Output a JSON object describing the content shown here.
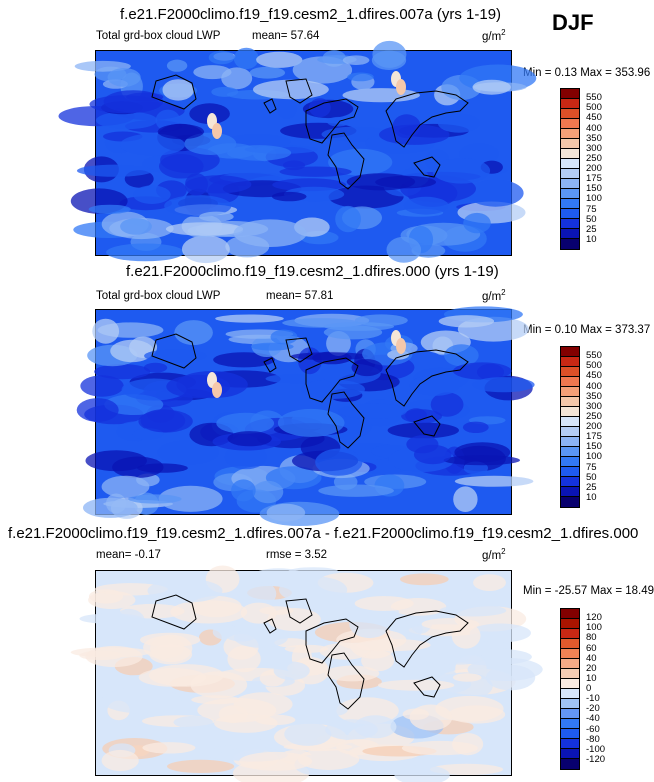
{
  "season": "DJF",
  "units_label": "g/m",
  "units_sup": "2",
  "panels": [
    {
      "title": "f.e21.F2000climo.f19_f19.cesm2_1.dfires.007a (yrs 1-19)",
      "left_label": "Total grd-box cloud LWP",
      "stat1": "mean=  57.64",
      "stat2": "",
      "minmax": "Min =   0.13 Max = 353.96"
    },
    {
      "title": "f.e21.F2000climo.f19_f19.cesm2_1.dfires.000 (yrs 1-19)",
      "left_label": "Total grd-box cloud LWP",
      "stat1": "mean=  57.81",
      "stat2": "",
      "minmax": "Min =   0.10 Max = 373.37"
    },
    {
      "title": "f.e21.F2000climo.f19_f19.cesm2_1.dfires.007a - f.e21.F2000climo.f19_f19.cesm2_1.dfires.000",
      "left_label": "mean=  -0.17",
      "stat1": "rmse =   3.52",
      "stat2": "",
      "minmax": "Min = -25.57 Max =  18.49"
    }
  ],
  "chart_data": [
    {
      "type": "heatmap",
      "title": "f.e21.F2000climo.f19_f19.cesm2_1.dfires.007a (yrs 1-19)",
      "variable": "Total grd-box cloud LWP",
      "units": "g/m2",
      "mean": 57.64,
      "min": 0.13,
      "max": 353.96,
      "colorbar_levels": [
        10,
        25,
        50,
        75,
        100,
        150,
        175,
        200,
        250,
        300,
        350,
        400,
        450,
        500,
        550
      ],
      "colorbar_colors": [
        "#08006e",
        "#0a14b4",
        "#1432dc",
        "#1e5af0",
        "#3278f5",
        "#5a96f5",
        "#8cb4f5",
        "#b4cdf5",
        "#d7e6fa",
        "#f5e6d7",
        "#f5c8aa",
        "#f5a078",
        "#f07850",
        "#dc5028",
        "#c82814",
        "#820000"
      ]
    },
    {
      "type": "heatmap",
      "title": "f.e21.F2000climo.f19_f19.cesm2_1.dfires.000 (yrs 1-19)",
      "variable": "Total grd-box cloud LWP",
      "units": "g/m2",
      "mean": 57.81,
      "min": 0.1,
      "max": 373.37,
      "colorbar_levels": [
        10,
        25,
        50,
        75,
        100,
        150,
        175,
        200,
        250,
        300,
        350,
        400,
        450,
        500,
        550
      ],
      "colorbar_colors": [
        "#08006e",
        "#0a14b4",
        "#1432dc",
        "#1e5af0",
        "#3278f5",
        "#5a96f5",
        "#8cb4f5",
        "#b4cdf5",
        "#d7e6fa",
        "#f5e6d7",
        "#f5c8aa",
        "#f5a078",
        "#f07850",
        "#dc5028",
        "#c82814",
        "#820000"
      ]
    },
    {
      "type": "heatmap",
      "title": "f.e21.F2000climo.f19_f19.cesm2_1.dfires.007a - f.e21.F2000climo.f19_f19.cesm2_1.dfires.000",
      "units": "g/m2",
      "mean": -0.17,
      "rmse": 3.52,
      "min": -25.57,
      "max": 18.49,
      "colorbar_levels": [
        -120,
        -100,
        -80,
        -60,
        -40,
        -20,
        -10,
        0,
        10,
        20,
        40,
        60,
        80,
        100,
        120
      ],
      "colorbar_colors": [
        "#08006e",
        "#0a14b4",
        "#1432dc",
        "#1e5af0",
        "#3278f5",
        "#6496f5",
        "#a0c3f5",
        "#d7e6fa",
        "#faebe1",
        "#f5cdb4",
        "#f5aa87",
        "#f08255",
        "#e15a2d",
        "#c82814",
        "#aa1400",
        "#820000"
      ]
    }
  ]
}
